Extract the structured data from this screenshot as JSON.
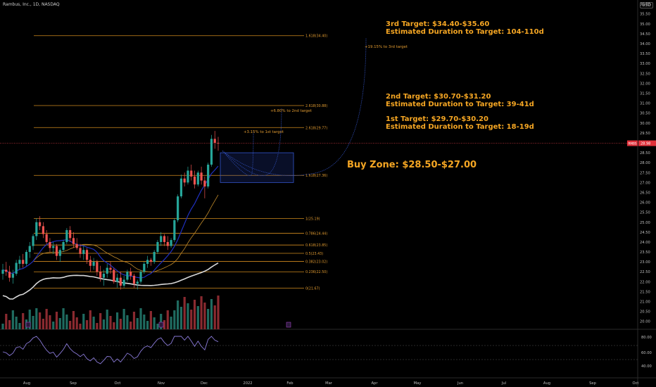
{
  "header": {
    "symbol_line": "Rambus, Inc., 1D, NASDAQ",
    "currency": "USD"
  },
  "chart_data": {
    "type": "candlestick",
    "ylim": [
      19.6,
      36.2
    ],
    "x_axis_labels": [
      "Aug",
      "Sep",
      "Oct",
      "Nov",
      "Dec",
      "2022",
      "Feb",
      "Mar",
      "Apr",
      "May",
      "Jun",
      "Jul",
      "Aug",
      "Sep",
      "Oct"
    ],
    "price_axis_ticks": [
      20.0,
      20.5,
      21.0,
      21.5,
      22.0,
      22.5,
      23.0,
      23.5,
      24.0,
      24.5,
      25.0,
      25.5,
      26.0,
      26.5,
      27.0,
      27.5,
      28.0,
      28.5,
      29.0,
      29.5,
      30.0,
      30.5,
      31.0,
      31.5,
      32.0,
      32.5,
      33.0,
      33.5,
      34.0,
      34.5,
      35.0,
      35.5,
      36.0
    ],
    "last_price": 28.98,
    "last_price_label": "28.98",
    "last_price_tag": "RMBS",
    "fib_levels": [
      {
        "label": "1.618(34.40)",
        "value": 34.4
      },
      {
        "label": "2.618(30.88)",
        "value": 30.88
      },
      {
        "label": "2.618(29.77)",
        "value": 29.77
      },
      {
        "label": "1.618(27.36)",
        "value": 27.36
      },
      {
        "label": "1(25.19)",
        "value": 25.19
      },
      {
        "label": "0.786(24.44)",
        "value": 24.44
      },
      {
        "label": "0.618(23.85)",
        "value": 23.85
      },
      {
        "label": "0.5(23.43)",
        "value": 23.43
      },
      {
        "label": "0.382(23.02)",
        "value": 23.02
      },
      {
        "label": "0.236(22.50)",
        "value": 22.5
      },
      {
        "label": "0(21.67)",
        "value": 21.67
      }
    ],
    "buy_zone": {
      "high": 28.5,
      "low": 27.0
    },
    "projections": [
      {
        "label": "+3.15% to 1st target",
        "target": 29.77
      },
      {
        "label": "+6.80% to 2nd target",
        "target": 30.88
      },
      {
        "label": "+19.15% to 3rd target",
        "target": 34.4
      }
    ],
    "annotations": [
      {
        "line1": "3rd Target: $34.40-$35.60",
        "line2": "Estimated Duration to Target: 104-110d"
      },
      {
        "line1": "2nd Target: $30.70-$31.20",
        "line2": "Estimated Duration to Target: 39-41d"
      },
      {
        "line1": "1st Target: $29.70-$30.20",
        "line2": "Estimated Duration to Target: 18-19d"
      },
      {
        "line1": "Buy Zone: $28.50-$27.00",
        "line2": ""
      }
    ],
    "candles": [
      [
        22.4,
        22.9,
        22.1,
        22.6
      ],
      [
        22.6,
        23.0,
        22.3,
        22.5
      ],
      [
        22.5,
        22.8,
        22.0,
        22.2
      ],
      [
        22.2,
        22.6,
        21.9,
        22.4
      ],
      [
        22.4,
        23.1,
        22.3,
        22.95
      ],
      [
        22.9,
        23.3,
        22.6,
        23.1
      ],
      [
        23.1,
        23.4,
        22.7,
        22.9
      ],
      [
        22.9,
        23.6,
        22.8,
        23.5
      ],
      [
        23.5,
        24.0,
        23.2,
        23.8
      ],
      [
        23.8,
        24.4,
        23.6,
        24.3
      ],
      [
        24.3,
        25.2,
        24.1,
        25.0
      ],
      [
        25.0,
        25.3,
        24.6,
        24.8
      ],
      [
        24.8,
        25.0,
        24.2,
        24.4
      ],
      [
        24.4,
        24.6,
        23.9,
        24.0
      ],
      [
        24.0,
        24.2,
        23.5,
        23.7
      ],
      [
        23.7,
        24.0,
        23.4,
        23.8
      ],
      [
        23.8,
        23.9,
        23.1,
        23.3
      ],
      [
        23.3,
        23.7,
        23.0,
        23.6
      ],
      [
        23.6,
        24.1,
        23.5,
        24.0
      ],
      [
        24.0,
        24.7,
        23.9,
        24.6
      ],
      [
        24.6,
        24.8,
        24.0,
        24.2
      ],
      [
        24.2,
        24.5,
        23.7,
        23.9
      ],
      [
        23.9,
        24.2,
        23.6,
        23.7
      ],
      [
        23.7,
        23.9,
        23.2,
        23.4
      ],
      [
        23.4,
        23.8,
        23.1,
        23.6
      ],
      [
        23.6,
        23.7,
        22.9,
        23.1
      ],
      [
        23.1,
        23.3,
        22.5,
        22.8
      ],
      [
        22.8,
        23.2,
        22.6,
        23.0
      ],
      [
        23.0,
        23.1,
        22.3,
        22.5
      ],
      [
        22.5,
        22.8,
        22.0,
        22.2
      ],
      [
        22.2,
        22.6,
        21.8,
        22.4
      ],
      [
        22.4,
        22.9,
        22.2,
        22.7
      ],
      [
        22.7,
        23.0,
        22.4,
        22.6
      ],
      [
        22.6,
        22.7,
        21.9,
        22.0
      ],
      [
        22.0,
        22.4,
        21.7,
        22.2
      ],
      [
        22.2,
        22.5,
        21.6,
        21.8
      ],
      [
        21.8,
        22.3,
        21.7,
        22.1
      ],
      [
        22.1,
        22.6,
        22.0,
        22.5
      ],
      [
        22.5,
        22.7,
        22.1,
        22.3
      ],
      [
        22.3,
        22.4,
        21.7,
        21.9
      ],
      [
        21.9,
        22.1,
        21.6,
        22.0
      ],
      [
        22.0,
        22.6,
        21.9,
        22.5
      ],
      [
        22.5,
        23.0,
        22.4,
        22.9
      ],
      [
        22.9,
        23.3,
        22.7,
        23.1
      ],
      [
        23.1,
        23.2,
        22.8,
        23.0
      ],
      [
        23.0,
        23.6,
        22.9,
        23.5
      ],
      [
        23.5,
        24.1,
        23.4,
        24.0
      ],
      [
        24.0,
        24.5,
        23.8,
        24.3
      ],
      [
        24.3,
        24.4,
        23.8,
        24.0
      ],
      [
        24.0,
        24.3,
        23.6,
        23.8
      ],
      [
        23.8,
        24.2,
        23.7,
        24.1
      ],
      [
        24.1,
        25.2,
        24.0,
        25.1
      ],
      [
        25.1,
        26.4,
        25.0,
        26.3
      ],
      [
        26.3,
        27.4,
        26.2,
        27.2
      ],
      [
        27.2,
        27.5,
        26.8,
        27.0
      ],
      [
        27.0,
        27.8,
        26.9,
        27.6
      ],
      [
        27.6,
        27.9,
        27.1,
        27.3
      ],
      [
        27.3,
        27.6,
        26.7,
        26.9
      ],
      [
        26.9,
        27.6,
        26.8,
        27.5
      ],
      [
        27.5,
        27.8,
        26.9,
        27.1
      ],
      [
        27.1,
        27.3,
        26.2,
        26.8
      ],
      [
        26.8,
        28.0,
        26.7,
        27.9
      ],
      [
        27.9,
        29.4,
        27.8,
        29.2
      ],
      [
        29.2,
        29.6,
        28.7,
        29.0
      ],
      [
        29.0,
        29.3,
        28.6,
        28.98
      ]
    ]
  }
}
